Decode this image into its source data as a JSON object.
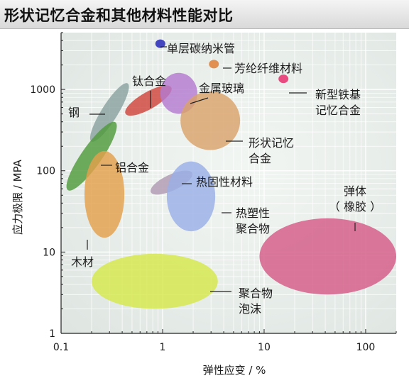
{
  "header": {
    "title": "形状记忆合金和其他材料性能对比"
  },
  "chart_data": {
    "type": "scatter",
    "title": "形状记忆合金和其他材料性能对比",
    "xlabel": "弹性应变 / %",
    "ylabel": "应力极限 / MPA",
    "x_scale": "log",
    "y_scale": "log",
    "xlim": [
      0.1,
      200
    ],
    "ylim": [
      1,
      5000
    ],
    "x_ticks": [
      "0.1",
      "1",
      "10",
      "100"
    ],
    "y_ticks": [
      "1",
      "10",
      "100",
      "1000"
    ],
    "grid": true,
    "colors": {
      "plot_bg": "#dfe6e2",
      "grid": "#ffffff"
    },
    "series": [
      {
        "name": "单层碳纳米管",
        "label_lines": [
          "单层碳纳米管"
        ],
        "x": 0.95,
        "y": 3650,
        "color": "#3b3dbd",
        "shape": "dot"
      },
      {
        "name": "芳纶纤维材料",
        "label_lines": [
          "芳纶纤维材料"
        ],
        "x": 3.2,
        "y": 2050,
        "color": "#e08a4a",
        "shape": "dot"
      },
      {
        "name": "新型铁基记忆合金",
        "label_lines": [
          "新型铁基",
          "记忆合金"
        ],
        "x": 15.5,
        "y": 1350,
        "color": "#e8417a",
        "shape": "dot"
      },
      {
        "name": "钛合金",
        "label_lines": [
          "钛合金"
        ],
        "x_range": [
          0.5,
          1.05
        ],
        "y_range": [
          280,
          1900
        ],
        "color": "#d0443c",
        "shape": "ellipse"
      },
      {
        "name": "金属玻璃",
        "label_lines": [
          "金属玻璃"
        ],
        "x_range": [
          0.95,
          2.2
        ],
        "y_range": [
          500,
          1600
        ],
        "color": "#b57ad0",
        "shape": "ellipse"
      },
      {
        "name": "形状记忆合金",
        "label_lines": [
          "形状记忆",
          "合金"
        ],
        "x_range": [
          1.5,
          5.8
        ],
        "y_range": [
          180,
          950
        ],
        "color": "#d9a26a",
        "shape": "ellipse"
      },
      {
        "name": "钢",
        "label_lines": [
          "钢"
        ],
        "x_range": [
          0.18,
          0.5
        ],
        "y_range": [
          160,
          1700
        ],
        "color": "#8aa2a0",
        "shape": "ellipse"
      },
      {
        "name": "铝合金",
        "label_lines": [
          "铝合金"
        ],
        "x_range": [
          0.1,
          0.4
        ],
        "y_range": [
          38,
          600
        ],
        "color": "#4f9a3c",
        "shape": "ellipse"
      },
      {
        "name": "热固性材料",
        "label_lines": [
          "热固性材料"
        ],
        "x_range": [
          0.88,
          1.7
        ],
        "y_range": [
          32,
          160
        ],
        "color": "#b098b2",
        "shape": "ellipse"
      },
      {
        "name": "热塑性聚合物",
        "label_lines": [
          "热塑性",
          "聚合物"
        ],
        "x_range": [
          1.1,
          3.3
        ],
        "y_range": [
          18,
          130
        ],
        "color": "#9aaee6",
        "shape": "ellipse"
      },
      {
        "name": "木材",
        "label_lines": [
          "木材"
        ],
        "x_range": [
          0.17,
          0.42
        ],
        "y_range": [
          15,
          175
        ],
        "color": "#e3a04c",
        "shape": "ellipse"
      },
      {
        "name": "弹体(橡胶)",
        "label_lines": [
          "弹体",
          "（ 橡胶 ）"
        ],
        "x_range": [
          9,
          200
        ],
        "y_range": [
          3,
          26
        ],
        "color": "#d45a86",
        "shape": "ellipse"
      },
      {
        "name": "聚合物泡沫",
        "label_lines": [
          "聚合物",
          "泡沫"
        ],
        "x_range": [
          0.2,
          3.5
        ],
        "y_range": [
          2,
          9.5
        ],
        "color": "#d6e84a",
        "shape": "ellipse"
      }
    ]
  }
}
